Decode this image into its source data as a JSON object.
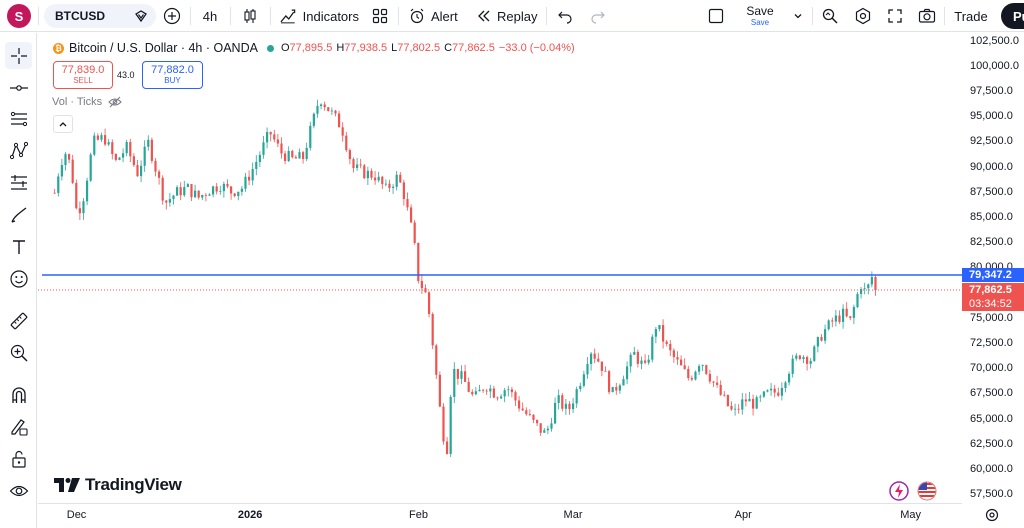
{
  "topbar": {
    "avatar_letter": "S",
    "symbol": "BTCUSD",
    "interval": "4h",
    "indicators_label": "Indicators",
    "alert_label": "Alert",
    "replay_label": "Replay",
    "save_label": "Save",
    "save_sub_label": "Save",
    "trade_label": "Trade",
    "publish_label": "Pu"
  },
  "legend": {
    "title": "Bitcoin / U.S. Dollar · 4h · OANDA",
    "open_label": "O",
    "open": "77,895.5",
    "high_label": "H",
    "high": "77,938.5",
    "low_label": "L",
    "low": "77,802.5",
    "close_label": "C",
    "close": "77,862.5",
    "change": "−33.0 (−0.04%)"
  },
  "order": {
    "sell_price": "77,839.0",
    "sell_label": "SELL",
    "spread": "43.0",
    "buy_price": "77,882.0",
    "buy_label": "BUY"
  },
  "volume_label": "Vol · Ticks",
  "price_axis": {
    "ticks": [
      "102,500.0",
      "100,000.0",
      "97,500.0",
      "95,000.0",
      "92,500.0",
      "90,000.0",
      "87,500.0",
      "85,000.0",
      "82,500.0",
      "80,000.0",
      "75,000.0",
      "72,500.0",
      "70,000.0",
      "67,500.0",
      "65,000.0",
      "62,500.0",
      "60,000.0",
      "57,500.0"
    ],
    "horizontal_line_label": "79,347.2",
    "last_price_label": "77,862.5",
    "countdown_label": "03:34:52"
  },
  "time_axis": {
    "ticks": [
      "Dec",
      "2026",
      "Feb",
      "Mar",
      "Apr",
      "May"
    ]
  },
  "branding": "TradingView",
  "colors": {
    "up": "#26a69a",
    "down": "#ef5350",
    "hline": "#2962ff",
    "accent": "#2962ff"
  },
  "chart_data": {
    "type": "candlestick",
    "symbol": "BTCUSD",
    "interval": "4h",
    "ylim": [
      56500,
      103500
    ],
    "horizontal_line": 79347.2,
    "last_price": 77862.5,
    "path_points": [
      [
        "2025-11-27",
        87500
      ],
      [
        "2025-11-28",
        90500
      ],
      [
        "2025-11-29",
        91500
      ],
      [
        "2025-11-30",
        90000
      ],
      [
        "2025-12-01",
        85500
      ],
      [
        "2025-12-02",
        86500
      ],
      [
        "2025-12-04",
        92500
      ],
      [
        "2025-12-06",
        93000
      ],
      [
        "2025-12-08",
        90500
      ],
      [
        "2025-12-10",
        92000
      ],
      [
        "2025-12-12",
        89500
      ],
      [
        "2025-12-14",
        92500
      ],
      [
        "2025-12-15",
        90500
      ],
      [
        "2025-12-17",
        86500
      ],
      [
        "2025-12-19",
        87500
      ],
      [
        "2025-12-21",
        88000
      ],
      [
        "2025-12-23",
        87000
      ],
      [
        "2025-12-25",
        87800
      ],
      [
        "2025-12-27",
        88300
      ],
      [
        "2025-12-29",
        87600
      ],
      [
        "2025-12-31",
        88000
      ],
      [
        "2026-01-02",
        90000
      ],
      [
        "2026-01-05",
        93500
      ],
      [
        "2026-01-07",
        91500
      ],
      [
        "2026-01-09",
        90800
      ],
      [
        "2026-01-11",
        91000
      ],
      [
        "2026-01-13",
        95000
      ],
      [
        "2026-01-14",
        97000
      ],
      [
        "2026-01-16",
        95500
      ],
      [
        "2026-01-18",
        94000
      ],
      [
        "2026-01-20",
        90000
      ],
      [
        "2026-01-22",
        89500
      ],
      [
        "2026-01-24",
        89200
      ],
      [
        "2026-01-26",
        87800
      ],
      [
        "2026-01-28",
        89000
      ],
      [
        "2026-01-29",
        88000
      ],
      [
        "2026-01-31",
        83000
      ],
      [
        "2026-02-01",
        78500
      ],
      [
        "2026-02-02",
        78000
      ],
      [
        "2026-02-03",
        75000
      ],
      [
        "2026-02-05",
        65000
      ],
      [
        "2026-02-06",
        61500
      ],
      [
        "2026-02-07",
        70000
      ],
      [
        "2026-02-09",
        69000
      ],
      [
        "2026-02-11",
        67000
      ],
      [
        "2026-02-13",
        68500
      ],
      [
        "2026-02-15",
        67500
      ],
      [
        "2026-02-17",
        68200
      ],
      [
        "2026-02-19",
        66500
      ],
      [
        "2026-02-22",
        64500
      ],
      [
        "2026-02-24",
        63500
      ],
      [
        "2026-02-26",
        67000
      ],
      [
        "2026-02-28",
        65800
      ],
      [
        "2026-03-02",
        68500
      ],
      [
        "2026-03-04",
        72000
      ],
      [
        "2026-03-06",
        70500
      ],
      [
        "2026-03-08",
        67500
      ],
      [
        "2026-03-10",
        69500
      ],
      [
        "2026-03-12",
        71500
      ],
      [
        "2026-03-14",
        70000
      ],
      [
        "2026-03-16",
        74500
      ],
      [
        "2026-03-18",
        72000
      ],
      [
        "2026-03-20",
        70500
      ],
      [
        "2026-03-22",
        69000
      ],
      [
        "2026-03-24",
        71000
      ],
      [
        "2026-03-27",
        68000
      ],
      [
        "2026-03-30",
        65500
      ],
      [
        "2026-04-01",
        67000
      ],
      [
        "2026-04-03",
        66500
      ],
      [
        "2026-04-05",
        67500
      ],
      [
        "2026-04-07",
        67800
      ],
      [
        "2026-04-09",
        70000
      ],
      [
        "2026-04-11",
        71500
      ],
      [
        "2026-04-13",
        71000
      ],
      [
        "2026-04-15",
        73500
      ],
      [
        "2026-04-17",
        74800
      ],
      [
        "2026-04-19",
        75500
      ],
      [
        "2026-04-20",
        74500
      ],
      [
        "2026-04-22",
        78500
      ],
      [
        "2026-04-23",
        77500
      ],
      [
        "2026-04-24",
        79200
      ],
      [
        "2026-04-25",
        77862.5
      ]
    ]
  }
}
